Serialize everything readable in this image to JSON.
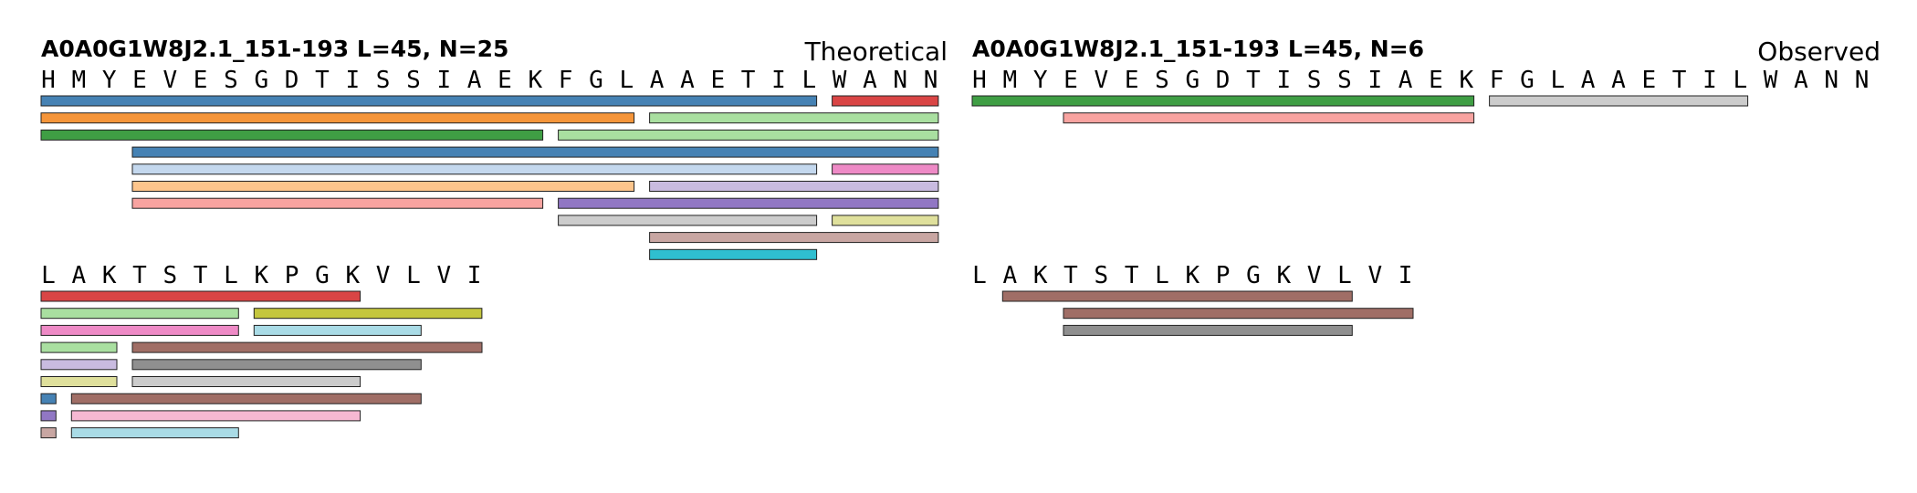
{
  "panels": [
    {
      "name": "theoretical",
      "title": "A0A0G1W8J2.1_151-193  L=45, N=25",
      "label": "Theoretical",
      "rows": [
        {
          "sequence": "HMYEVESGDTISSIAEKFGLAAETILWANN",
          "bars": [
            {
              "start": 0,
              "end": 25,
              "level": 0,
              "color": "#4682b4"
            },
            {
              "start": 26,
              "end": 29,
              "level": 0,
              "color": "#d94545"
            },
            {
              "start": 0,
              "end": 19,
              "level": 1,
              "color": "#f5953a"
            },
            {
              "start": 20,
              "end": 29,
              "level": 1,
              "color": "#a9dfa0"
            },
            {
              "start": 0,
              "end": 16,
              "level": 2,
              "color": "#3f9e44"
            },
            {
              "start": 17,
              "end": 29,
              "level": 2,
              "color": "#a9dfa0"
            },
            {
              "start": 3,
              "end": 29,
              "level": 3,
              "color": "#4682b4"
            },
            {
              "start": 3,
              "end": 25,
              "level": 4,
              "color": "#c4d8ee"
            },
            {
              "start": 26,
              "end": 29,
              "level": 4,
              "color": "#ee8ac6"
            },
            {
              "start": 3,
              "end": 19,
              "level": 5,
              "color": "#fdc58c"
            },
            {
              "start": 20,
              "end": 29,
              "level": 5,
              "color": "#c9bbe0"
            },
            {
              "start": 3,
              "end": 16,
              "level": 6,
              "color": "#f8a3a0"
            },
            {
              "start": 17,
              "end": 29,
              "level": 6,
              "color": "#9177c4"
            },
            {
              "start": 17,
              "end": 25,
              "level": 7,
              "color": "#cccccc"
            },
            {
              "start": 26,
              "end": 29,
              "level": 7,
              "color": "#dfe09c"
            },
            {
              "start": 20,
              "end": 29,
              "level": 8,
              "color": "#c8a6a2"
            },
            {
              "start": 20,
              "end": 25,
              "level": 9,
              "color": "#2fbfd0"
            }
          ]
        },
        {
          "sequence": "LAKTSTLKPGKVLVI",
          "bars": [
            {
              "start": 0,
              "end": 10,
              "level": 0,
              "color": "#d94545"
            },
            {
              "start": 0,
              "end": 6,
              "level": 1,
              "color": "#a9dfa0"
            },
            {
              "start": 7,
              "end": 14,
              "level": 1,
              "color": "#c4c63e"
            },
            {
              "start": 0,
              "end": 6,
              "level": 2,
              "color": "#ee8ac6"
            },
            {
              "start": 7,
              "end": 12,
              "level": 2,
              "color": "#a9dbe6"
            },
            {
              "start": 0,
              "end": 2,
              "level": 3,
              "color": "#a9dfa0"
            },
            {
              "start": 3,
              "end": 14,
              "level": 3,
              "color": "#a06e66"
            },
            {
              "start": 0,
              "end": 2,
              "level": 4,
              "color": "#c9bbe0"
            },
            {
              "start": 3,
              "end": 12,
              "level": 4,
              "color": "#8f8f8f"
            },
            {
              "start": 0,
              "end": 2,
              "level": 5,
              "color": "#dfe09c"
            },
            {
              "start": 3,
              "end": 10,
              "level": 5,
              "color": "#cccccc"
            },
            {
              "start": 0,
              "end": 0,
              "level": 6,
              "color": "#4682b4"
            },
            {
              "start": 1,
              "end": 12,
              "level": 6,
              "color": "#a06e66"
            },
            {
              "start": 0,
              "end": 0,
              "level": 7,
              "color": "#9177c4"
            },
            {
              "start": 1,
              "end": 10,
              "level": 7,
              "color": "#f6b8d2"
            },
            {
              "start": 0,
              "end": 0,
              "level": 8,
              "color": "#c8a6a2"
            },
            {
              "start": 1,
              "end": 6,
              "level": 8,
              "color": "#a9dbe6"
            }
          ]
        }
      ]
    },
    {
      "name": "observed",
      "title": "A0A0G1W8J2.1_151-193  L=45, N=6",
      "label": "Observed",
      "rows": [
        {
          "sequence": "HMYEVESGDTISSIAEKFGLAAETILWANN",
          "bars": [
            {
              "start": 0,
              "end": 16,
              "level": 0,
              "color": "#3f9e44"
            },
            {
              "start": 17,
              "end": 25,
              "level": 0,
              "color": "#cccccc"
            },
            {
              "start": 3,
              "end": 16,
              "level": 1,
              "color": "#f8a3a0"
            }
          ]
        },
        {
          "sequence": "LAKTSTLKPGKVLVI",
          "bars": [
            {
              "start": 1,
              "end": 12,
              "level": 0,
              "color": "#a06e66"
            },
            {
              "start": 3,
              "end": 14,
              "level": 1,
              "color": "#a06e66"
            },
            {
              "start": 3,
              "end": 12,
              "level": 2,
              "color": "#8f8f8f"
            }
          ]
        }
      ]
    }
  ]
}
